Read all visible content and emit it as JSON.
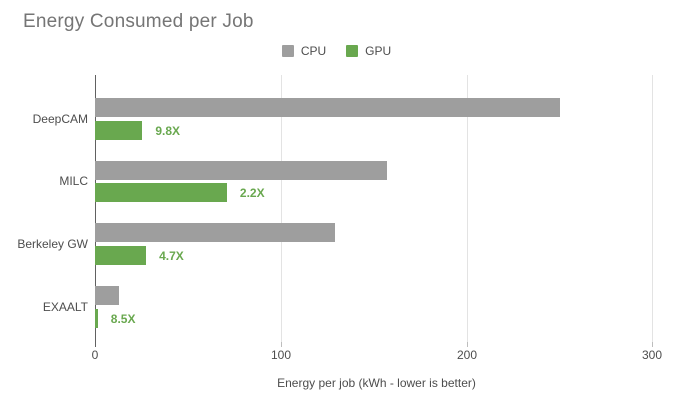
{
  "title": "Energy Consumed per Job",
  "legend": {
    "items": [
      {
        "label": "CPU",
        "color": "#9e9e9e"
      },
      {
        "label": "GPU",
        "color": "#69a84f"
      }
    ]
  },
  "colors": {
    "cpu_bar": "#9e9e9e",
    "gpu_bar": "#69a84f",
    "annotation_text": "#69a84f",
    "gridline": "#e3e3e3",
    "axis_line": "#616161",
    "title_text": "#757575",
    "label_text": "#4d4d4d"
  },
  "chart_data": {
    "type": "bar",
    "orientation": "horizontal",
    "title": "Energy Consumed per Job",
    "categories": [
      "DeepCAM",
      "MILC",
      "Berkeley GW",
      "EXAALT"
    ],
    "series": [
      {
        "name": "CPU",
        "color": "#9e9e9e",
        "values": [
          250,
          157,
          129,
          13
        ]
      },
      {
        "name": "GPU",
        "color": "#69a84f",
        "values": [
          25.5,
          71,
          27.5,
          1.5
        ]
      }
    ],
    "annotations": [
      "9.8X",
      "2.2X",
      "4.7X",
      "8.5X"
    ],
    "annotation_color": "#69a84f",
    "xlabel": "Energy per job (kWh - lower is better)",
    "xlim": [
      0,
      303
    ],
    "xticks": [
      0,
      100,
      200,
      300
    ],
    "legend_position": "top",
    "grid": "vertical-only"
  }
}
